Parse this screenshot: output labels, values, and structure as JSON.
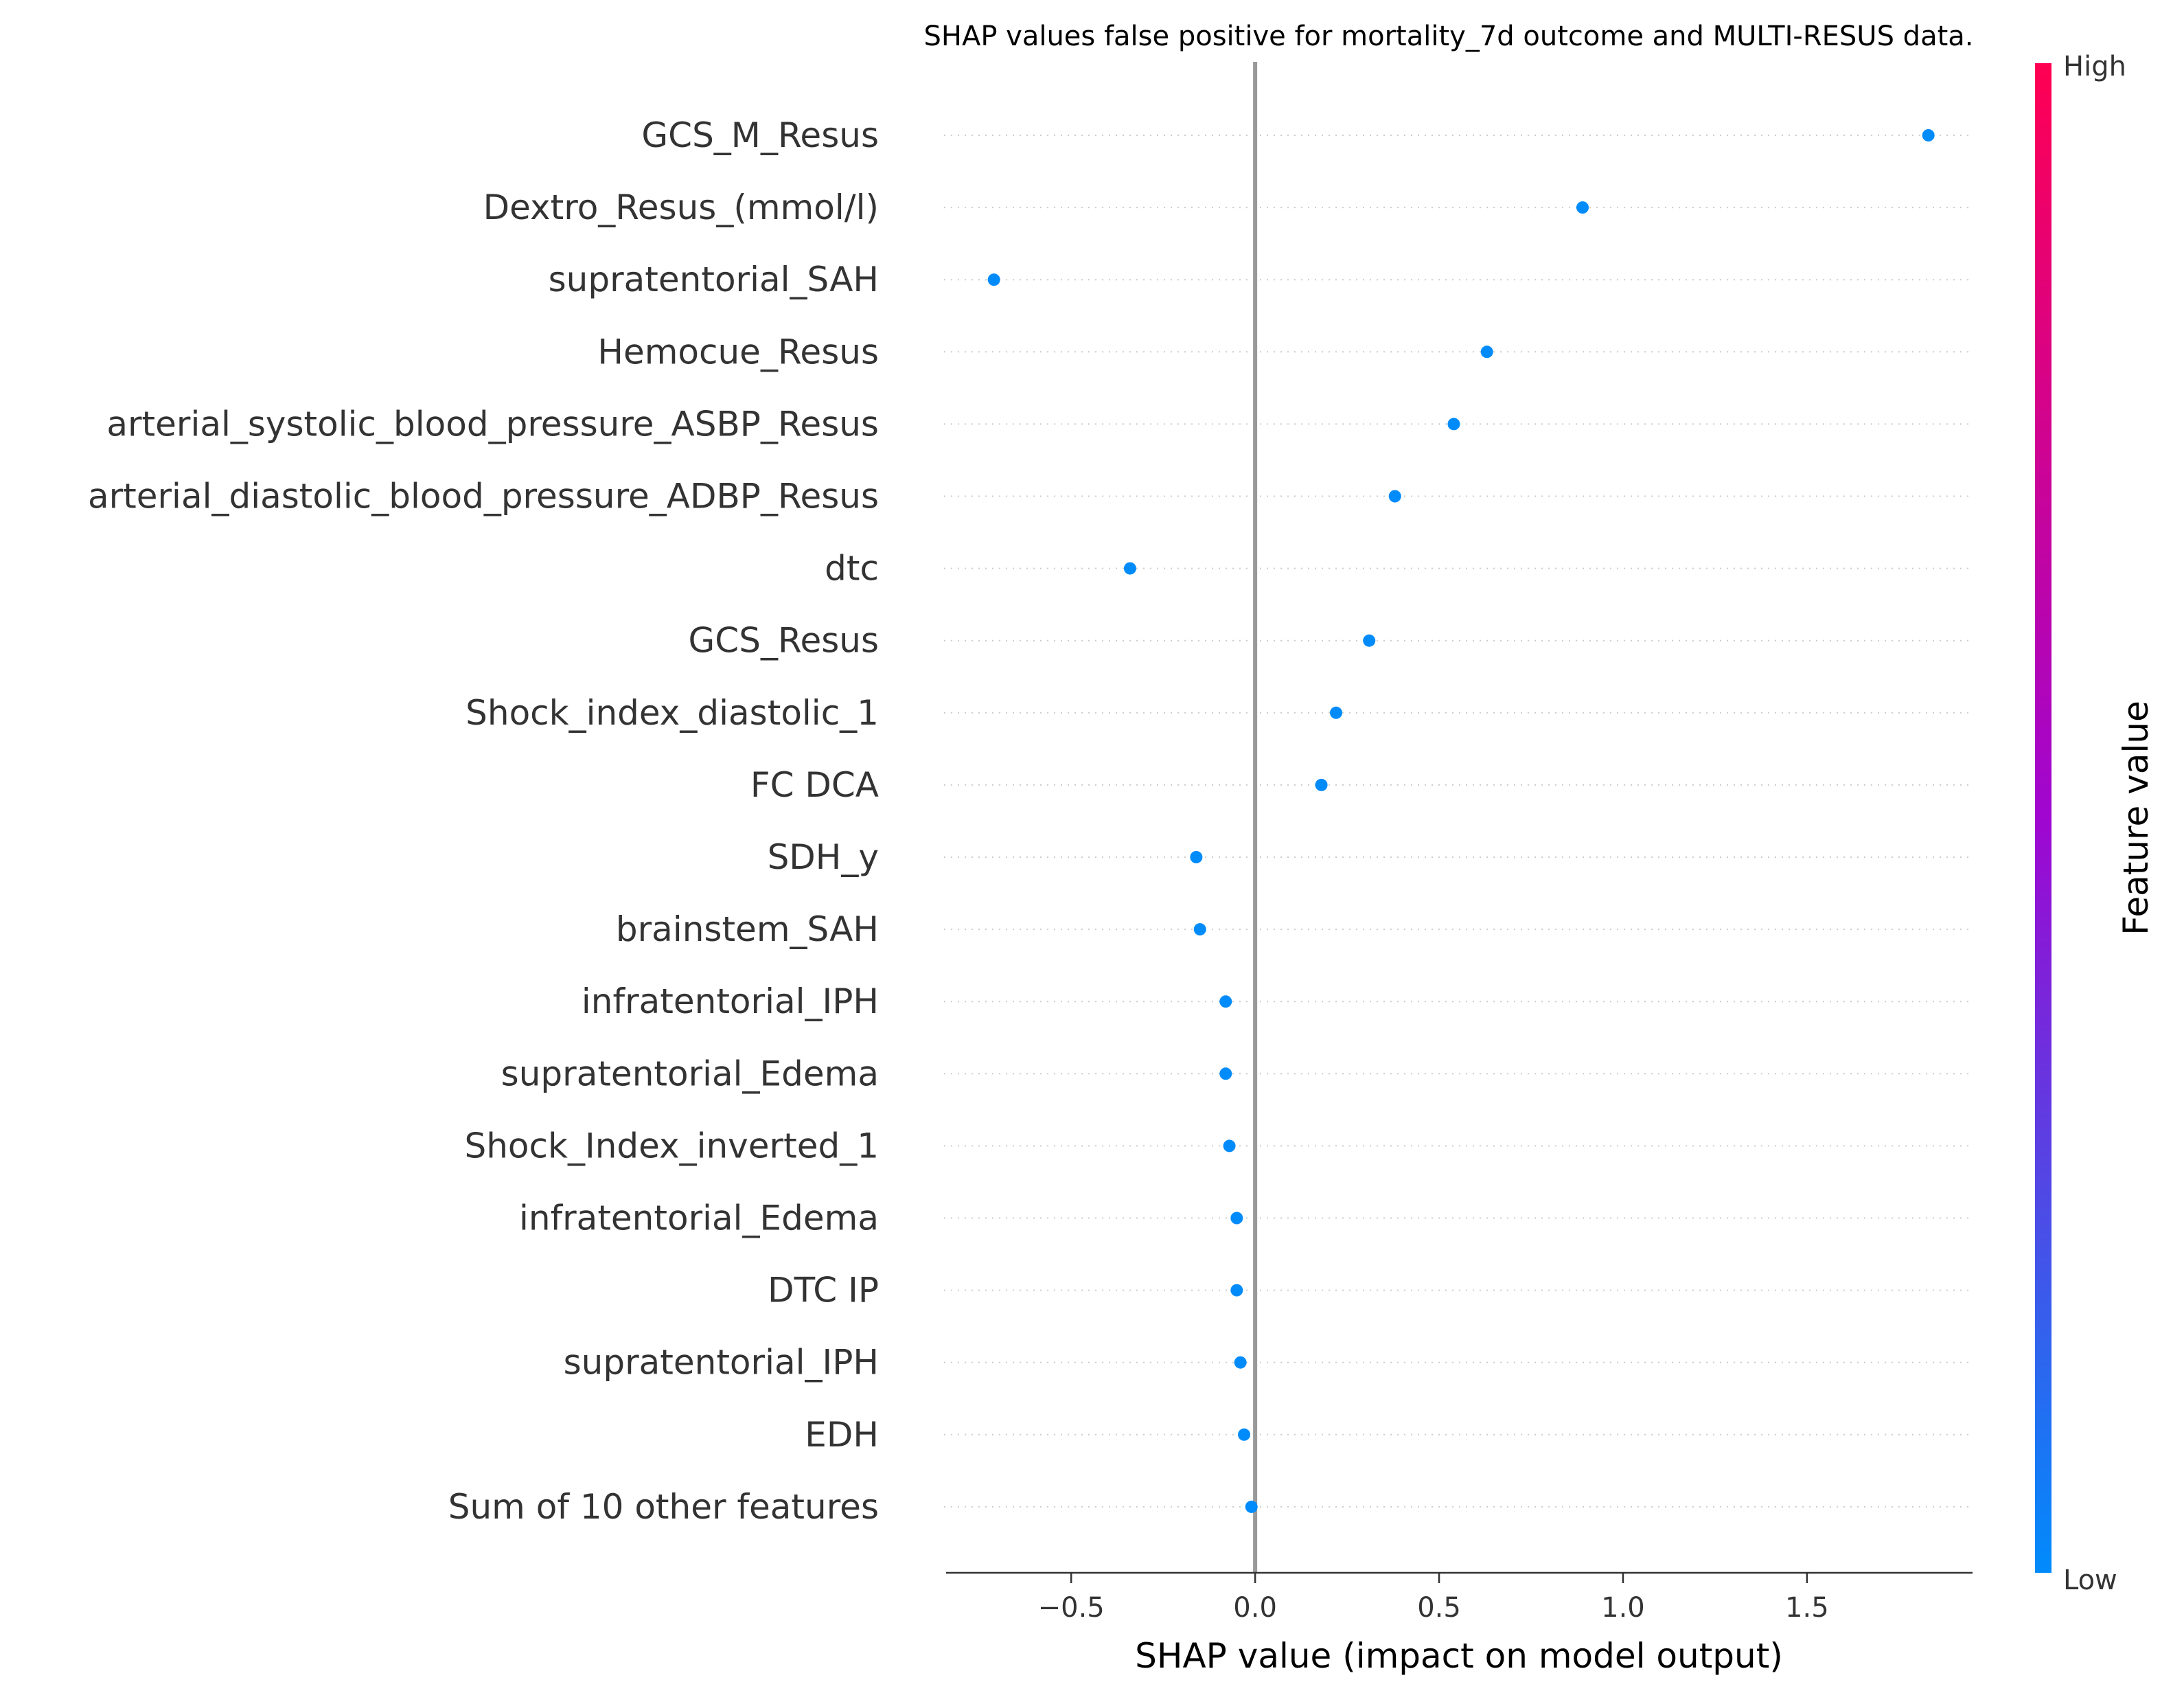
{
  "chart_data": {
    "type": "scatter",
    "title": "SHAP values false positive for mortality_7d outcome and MULTI-RESUS data.",
    "xlabel": "SHAP value (impact on model output)",
    "ylabel": "",
    "xlim": [
      -0.84,
      1.95
    ],
    "xticks": [
      -0.5,
      0.0,
      0.5,
      1.0,
      1.5
    ],
    "xtick_labels": [
      "−0.5",
      "0.0",
      "0.5",
      "1.0",
      "1.5"
    ],
    "features": [
      {
        "name": "GCS_M_Resus",
        "value": 1.83
      },
      {
        "name": "Dextro_Resus_(mmol/l)",
        "value": 0.89
      },
      {
        "name": "supratentorial_SAH",
        "value": -0.71
      },
      {
        "name": "Hemocue_Resus",
        "value": 0.63
      },
      {
        "name": "arterial_systolic_blood_pressure_ASBP_Resus",
        "value": 0.54
      },
      {
        "name": "arterial_diastolic_blood_pressure_ADBP_Resus",
        "value": 0.38
      },
      {
        "name": "dtc",
        "value": -0.34
      },
      {
        "name": "GCS_Resus",
        "value": 0.31
      },
      {
        "name": "Shock_index_diastolic_1",
        "value": 0.22
      },
      {
        "name": "FC  DCA",
        "value": 0.18
      },
      {
        "name": "SDH_y",
        "value": -0.16
      },
      {
        "name": "brainstem_SAH",
        "value": -0.15
      },
      {
        "name": "infratentorial_IPH",
        "value": -0.08
      },
      {
        "name": "supratentorial_Edema",
        "value": -0.08
      },
      {
        "name": "Shock_Index_inverted_1",
        "value": -0.07
      },
      {
        "name": "infratentorial_Edema",
        "value": -0.05
      },
      {
        "name": "DTC IP",
        "value": -0.05
      },
      {
        "name": "supratentorial_IPH",
        "value": -0.04
      },
      {
        "name": "EDH",
        "value": -0.03
      },
      {
        "name": "Sum of 10 other features",
        "value": -0.01
      }
    ],
    "point_color": "#008BFB",
    "grid": false,
    "colorbar": {
      "label": "Feature value",
      "high_label": "High",
      "low_label": "Low",
      "low_color": "#008BFB",
      "mid_color": "#9F06D0",
      "high_color": "#FF0052"
    }
  }
}
